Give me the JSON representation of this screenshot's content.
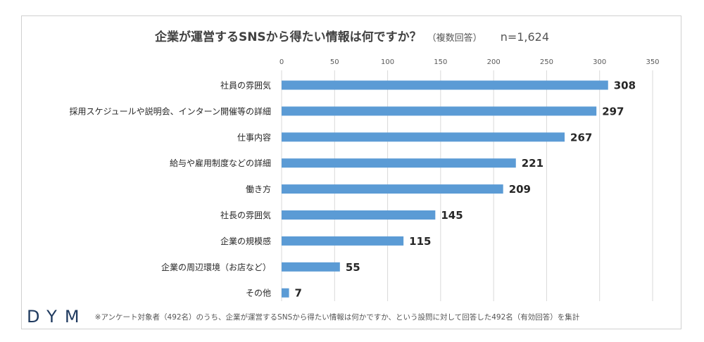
{
  "chart_data": {
    "type": "bar",
    "orientation": "horizontal",
    "title": "企業が運営するSNSから得たい情報は何ですか？",
    "subtitle": "（複数回答）",
    "n_label": "n=1,624",
    "categories": [
      "社員の雰囲気",
      "採用スケジュールや説明会、インターン開催等の詳細",
      "仕事内容",
      "給与や雇用制度などの詳細",
      "働き方",
      "社長の雰囲気",
      "企業の規模感",
      "企業の周辺環境（お店など）",
      "その他"
    ],
    "values": [
      308,
      297,
      267,
      221,
      209,
      145,
      115,
      55,
      7
    ],
    "xlim": [
      0,
      350
    ],
    "x_ticks": [
      0,
      50,
      100,
      150,
      200,
      250,
      300,
      350
    ],
    "xaxis_position": "top",
    "grid": true,
    "bar_color": "#5b9bd5",
    "grid_color": "#d9d9d9"
  },
  "footer": {
    "logo": "DYM",
    "note": "※アンケート対象者（492名）のうち、企業が運営するSNSから得たい情報は何かですか、という設問に対して回答した492名（有効回答）を集計"
  }
}
